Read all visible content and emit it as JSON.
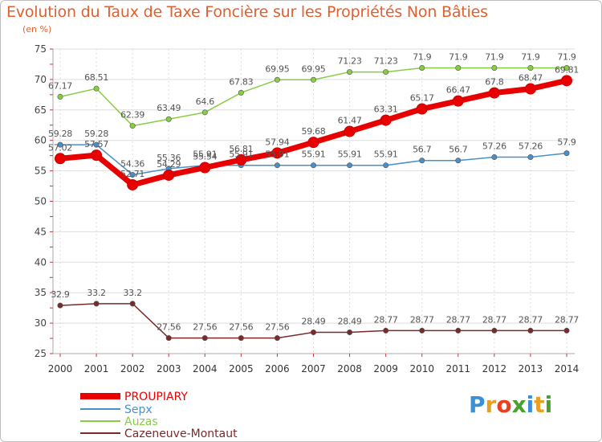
{
  "header": {
    "title": "Evolution du Taux de Taxe Foncière sur les Propriétés Non Bâties",
    "unit": "(en %)"
  },
  "logo": {
    "text": "Proxiti",
    "colors": [
      "#3a8fd6",
      "#e8a020",
      "#e84020",
      "#4aa030",
      "#3a8fd6",
      "#e8a020",
      "#4aa030"
    ]
  },
  "chart_data": {
    "type": "line",
    "title": "Evolution du Taux de Taxe Foncière sur les Propriétés Non Bâties",
    "ylabel": "(en %)",
    "xlabel": "",
    "ylim": [
      25,
      75
    ],
    "yticks": [
      25,
      30,
      35,
      40,
      45,
      50,
      55,
      60,
      65,
      70,
      75
    ],
    "grid": true,
    "legend": "bottom-left",
    "x": [
      "2000",
      "2001",
      "2002",
      "2003",
      "2004",
      "2005",
      "2006",
      "2007",
      "2008",
      "2009",
      "2010",
      "2011",
      "2012",
      "2013",
      "2014"
    ],
    "series": [
      {
        "name": "PROUPIARY",
        "color": "#e80000",
        "values": [
          57.02,
          57.57,
          52.71,
          54.29,
          55.54,
          56.81,
          57.94,
          59.68,
          61.47,
          63.31,
          65.17,
          66.47,
          67.8,
          68.47,
          69.81
        ],
        "labels": [
          "57.02",
          "57.57",
          "52.71",
          "54.29",
          "55.54",
          "56.81",
          "57.94",
          "59.68",
          "61.47",
          "63.31",
          "65.17",
          "66.47",
          "67.8",
          "68.47",
          "69.81"
        ]
      },
      {
        "name": "Sepx",
        "color": "#4a90c8",
        "values": [
          59.28,
          59.28,
          54.36,
          55.36,
          55.91,
          55.91,
          55.91,
          55.91,
          55.91,
          55.91,
          56.7,
          56.7,
          57.26,
          57.26,
          57.9
        ],
        "labels": [
          "59.28",
          "59.28",
          "54.36",
          "55.36",
          "55.91",
          "55.91",
          "55.91",
          "55.91",
          "55.91",
          "55.91",
          "56.7",
          "56.7",
          "57.26",
          "57.26",
          "57.9"
        ]
      },
      {
        "name": "Auzas",
        "color": "#88cc44",
        "values": [
          67.17,
          68.51,
          62.39,
          63.49,
          64.6,
          67.83,
          69.95,
          69.95,
          71.23,
          71.23,
          71.9,
          71.9,
          71.9,
          71.9,
          71.9
        ],
        "labels": [
          "67.17",
          "68.51",
          "62.39",
          "63.49",
          "64.6",
          "67.83",
          "69.95",
          "69.95",
          "71.23",
          "71.23",
          "71.9",
          "71.9",
          "71.9",
          "71.9",
          "71.9"
        ]
      },
      {
        "name": "Cazeneuve-Montaut",
        "color": "#7a2a2a",
        "values": [
          32.9,
          33.2,
          33.2,
          27.56,
          27.56,
          27.56,
          27.56,
          28.49,
          28.49,
          28.77,
          28.77,
          28.77,
          28.77,
          28.77,
          28.77
        ],
        "labels": [
          "32.9",
          "33.2",
          "33.2",
          "27.56",
          "27.56",
          "27.56",
          "27.56",
          "28.49",
          "28.49",
          "28.77",
          "28.77",
          "28.77",
          "28.77",
          "28.77",
          "28.77"
        ]
      }
    ]
  }
}
